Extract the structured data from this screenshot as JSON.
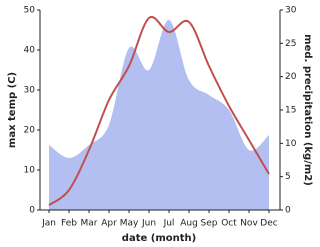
{
  "chart_data": {
    "type": "line",
    "x_label": "date (month)",
    "y_label": "max temp (C)",
    "y2_label": "med. precipitation (kg/m2)",
    "categories": [
      "Jan",
      "Feb",
      "Mar",
      "Apr",
      "May",
      "Jun",
      "Jul",
      "Aug",
      "Sep",
      "Oct",
      "Nov",
      "Dec"
    ],
    "series": [
      {
        "name": "max temp",
        "color": "#c0504d",
        "values": [
          1.2,
          5,
          15,
          27.5,
          36,
          48,
          44.5,
          47,
          36,
          26,
          17.5,
          9
        ]
      },
      {
        "name": "med. precipitation",
        "color": "#b3bff0",
        "axis": "y2",
        "values": [
          9.75,
          7.8,
          9.75,
          12.75,
          24.3,
          21,
          28.5,
          19.5,
          17.25,
          15,
          9,
          11.25
        ]
      }
    ],
    "ylim": [
      0,
      50
    ],
    "yticks": [
      0,
      10,
      20,
      30,
      40,
      50
    ],
    "y2lim": [
      0,
      30
    ],
    "y2ticks": [
      0,
      5,
      10,
      15,
      20,
      25,
      30
    ]
  }
}
